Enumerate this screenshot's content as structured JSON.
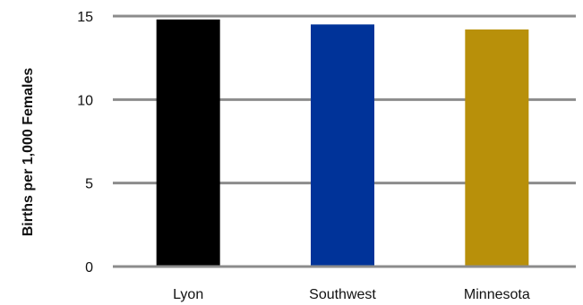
{
  "chart_data": {
    "type": "bar",
    "title": "",
    "xlabel": "",
    "ylabel": "Births per 1,000 Females",
    "categories": [
      "Lyon",
      "Southwest",
      "Minnesota"
    ],
    "values": [
      14.8,
      14.5,
      14.2
    ],
    "colors": [
      "#000000",
      "#003399",
      "#B8900A"
    ],
    "ylim": [
      0,
      15
    ],
    "yticks": [
      0,
      5,
      10,
      15
    ],
    "ytick_labels": [
      "0",
      "5",
      "10",
      "15"
    ],
    "grid": true,
    "gridline_color": "#8c8c8c",
    "legend": "none"
  }
}
